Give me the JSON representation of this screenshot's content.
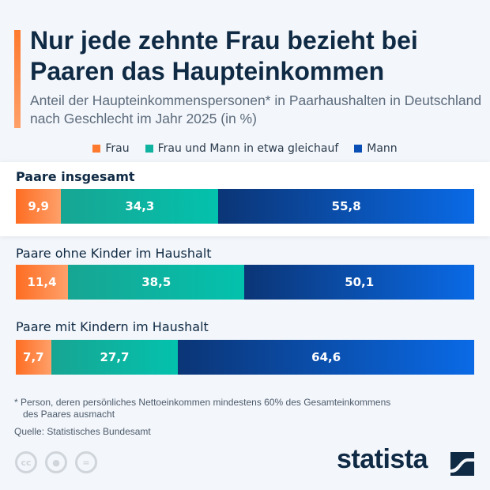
{
  "title": "Nur jede zehnte Frau bezieht bei Paaren das Haupteinkommen",
  "subtitle": "Anteil der Haupteinkommenspersonen* in Paarhaushalten in Deutschland nach Geschlecht im Jahr 2025 (in %)",
  "chart_data": {
    "type": "bar",
    "stacked": true,
    "orientation": "horizontal",
    "categories": [
      "Paare insgesamt",
      "Paare ohne Kinder im Haushalt",
      "Paare mit Kindern im Haushalt"
    ],
    "series": [
      {
        "name": "Frau",
        "values": [
          9.9,
          11.4,
          7.7
        ],
        "labels": [
          "9,9",
          "11,4",
          "7,7"
        ],
        "color": "#fe7a2e"
      },
      {
        "name": "Frau und Mann in etwa gleichauf",
        "values": [
          34.3,
          38.5,
          27.7
        ],
        "labels": [
          "34,3",
          "38,5",
          "27,7"
        ],
        "color": "#10b3a0"
      },
      {
        "name": "Mann",
        "values": [
          55.8,
          50.1,
          64.6
        ],
        "labels": [
          "55,8",
          "50,1",
          "64,6"
        ],
        "color": "#0a4fb5"
      }
    ],
    "xlim": [
      0,
      100
    ],
    "legend": "top"
  },
  "footnote": "* Person, deren persönliches Nettoeinkommen mindestens 60% des Gesamteinkommens",
  "footnote2": "des Paares ausmacht",
  "source": "Quelle: Statistisches Bundesamt",
  "logo": "statista",
  "license_icons": [
    "cc-icon",
    "by-icon",
    "nd-icon"
  ]
}
